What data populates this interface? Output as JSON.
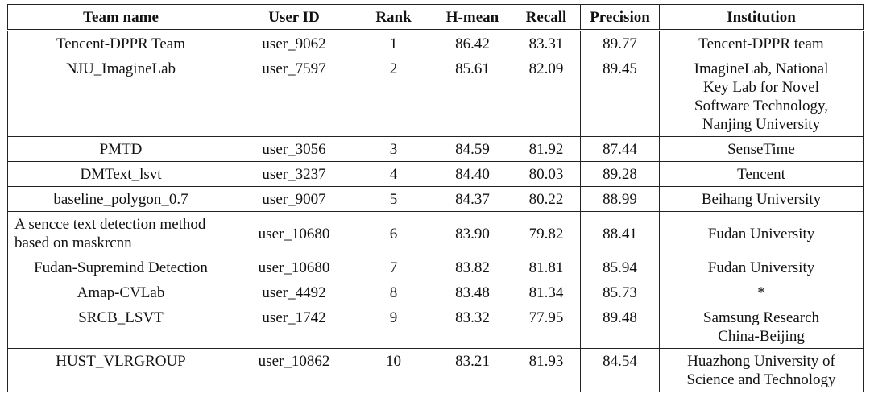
{
  "table": {
    "headers": [
      "Team name",
      "User ID",
      "Rank",
      "H-mean",
      "Recall",
      "Precision",
      "Institution"
    ],
    "rows": [
      {
        "team": [
          "Tencent-DPPR Team"
        ],
        "user_id": "user_9062",
        "rank": "1",
        "hmean": "86.42",
        "recall": "83.31",
        "precision": "89.77",
        "institution": [
          "Tencent-DPPR team"
        ]
      },
      {
        "team": [
          "NJU_ImagineLab"
        ],
        "user_id": "user_7597",
        "rank": "2",
        "hmean": "85.61",
        "recall": "82.09",
        "precision": "89.45",
        "institution": [
          "ImagineLab, National",
          "Key Lab for Novel",
          "Software Technology,",
          "Nanjing University"
        ]
      },
      {
        "team": [
          "PMTD"
        ],
        "user_id": "user_3056",
        "rank": "3",
        "hmean": "84.59",
        "recall": "81.92",
        "precision": "87.44",
        "institution": [
          "SenseTime"
        ]
      },
      {
        "team": [
          "DMText_lsvt"
        ],
        "user_id": "user_3237",
        "rank": "4",
        "hmean": "84.40",
        "recall": "80.03",
        "precision": "89.28",
        "institution": [
          "Tencent"
        ]
      },
      {
        "team": [
          "baseline_polygon_0.7"
        ],
        "user_id": "user_9007",
        "rank": "5",
        "hmean": "84.37",
        "recall": "80.22",
        "precision": "88.99",
        "institution": [
          "Beihang University"
        ]
      },
      {
        "team": [
          "A sencce text detection method",
          "based on maskrcnn"
        ],
        "user_id": "user_10680",
        "rank": "6",
        "hmean": "83.90",
        "recall": "79.82",
        "precision": "88.41",
        "institution": [
          "Fudan University"
        ]
      },
      {
        "team": [
          "Fudan-Supremind Detection"
        ],
        "user_id": "user_10680",
        "rank": "7",
        "hmean": "83.82",
        "recall": "81.81",
        "precision": "85.94",
        "institution": [
          "Fudan University"
        ]
      },
      {
        "team": [
          "Amap-CVLab"
        ],
        "user_id": "user_4492",
        "rank": "8",
        "hmean": "83.48",
        "recall": "81.34",
        "precision": "85.73",
        "institution": [
          "*"
        ]
      },
      {
        "team": [
          "SRCB_LSVT"
        ],
        "user_id": "user_1742",
        "rank": "9",
        "hmean": "83.32",
        "recall": "77.95",
        "precision": "89.48",
        "institution": [
          "Samsung Research",
          "China-Beijing"
        ]
      },
      {
        "team": [
          "HUST_VLRGROUP"
        ],
        "user_id": "user_10862",
        "rank": "10",
        "hmean": "83.21",
        "recall": "81.93",
        "precision": "84.54",
        "institution": [
          "Huazhong University of",
          "Science and Technology"
        ]
      }
    ]
  }
}
